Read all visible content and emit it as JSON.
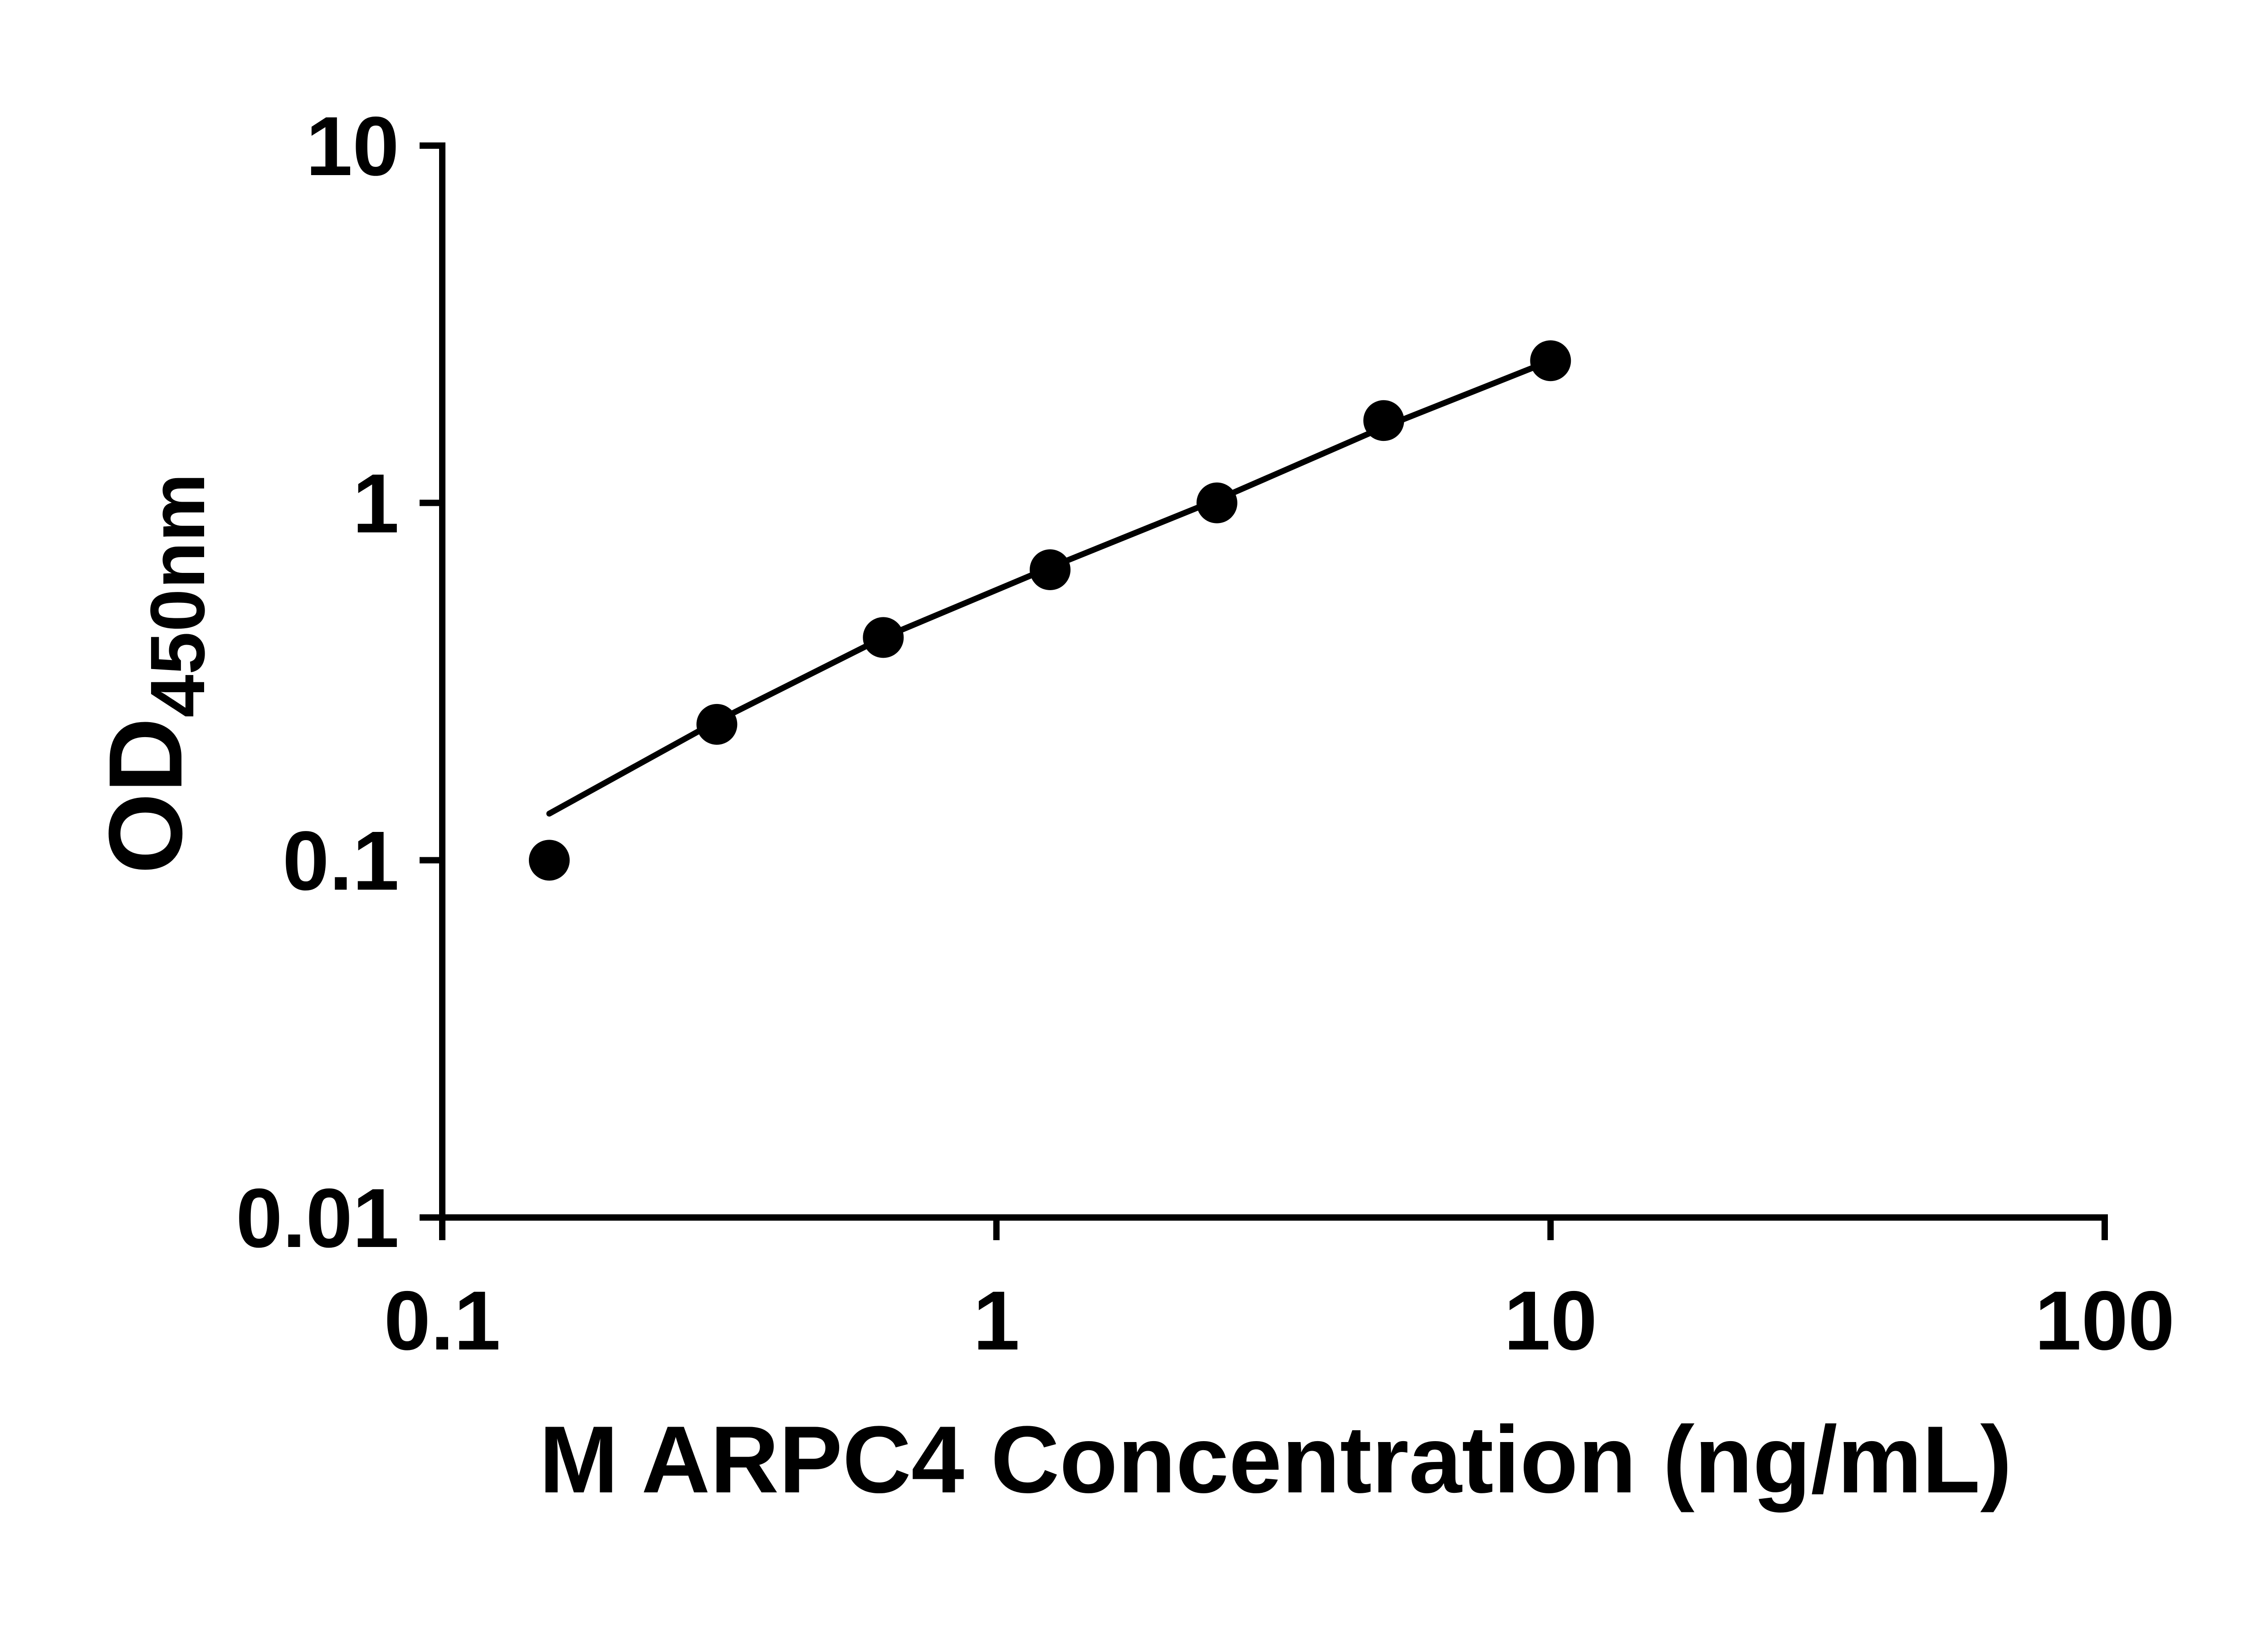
{
  "figure": {
    "background_color": "#ffffff",
    "foreground_color": "#000000"
  },
  "chart_data": {
    "type": "scatter",
    "title": "",
    "xlabel": "M ARPC4 Concentration (ng/mL)",
    "ylabel_main": "OD",
    "ylabel_sub": "450nm",
    "x_scale": "log10",
    "y_scale": "log10",
    "xlim": [
      0.1,
      100
    ],
    "ylim": [
      0.01,
      10
    ],
    "x_tick_values": [
      0.1,
      1,
      10,
      100
    ],
    "x_tick_labels": [
      "0.1",
      "1",
      "10",
      "100"
    ],
    "y_tick_values": [
      0.01,
      0.1,
      1,
      10
    ],
    "y_tick_labels": [
      "0.01",
      "0.1",
      "1",
      "10"
    ],
    "grid": false,
    "legend": "none",
    "marker_color": "#000000",
    "line_color": "#000000",
    "axis_color": "#000000",
    "series": [
      {
        "name": "standard-curve-points",
        "x": [
          0.156,
          0.313,
          0.625,
          1.25,
          2.5,
          5,
          10
        ],
        "y": [
          0.1,
          0.24,
          0.42,
          0.65,
          1.0,
          1.7,
          2.5
        ]
      }
    ],
    "fit_line": {
      "x": [
        0.156,
        0.313,
        0.625,
        1.25,
        2.5,
        5,
        10
      ],
      "y": [
        0.135,
        0.245,
        0.42,
        0.66,
        1.02,
        1.63,
        2.5
      ]
    }
  }
}
